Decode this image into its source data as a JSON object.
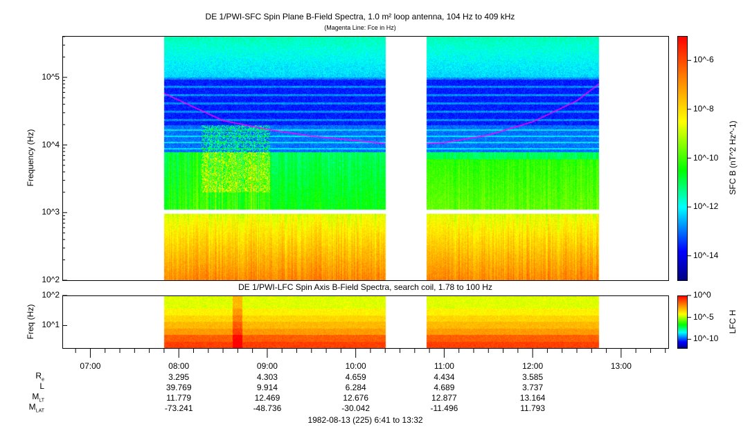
{
  "chart_data": [
    {
      "type": "heatmap",
      "title": "DE 1/PWI-SFC  Spin Plane B-Field Spectra, 1.0 m² loop antenna, 104 Hz to 409 kHz",
      "subtitle": "(Magenta Line: Fce in Hz)",
      "ylabel": "Frequency (Hz)",
      "yscale": "log",
      "ylim": [
        100,
        409000
      ],
      "ytick_labels": [
        "10^2",
        "10^3",
        "10^4",
        "10^5"
      ],
      "xlim": [
        "06:41",
        "13:32"
      ],
      "data_intervals": [
        [
          "07:50",
          "10:20"
        ],
        [
          "10:48",
          "12:45"
        ]
      ],
      "colorbar": {
        "label": "SFC B (nT^2 Hz^-1)",
        "scale": "log",
        "range": [
          1e-15,
          1e-05
        ],
        "tick_labels": [
          "10^-6",
          "10^-8",
          "10^-10",
          "10^-12",
          "10^-14"
        ]
      },
      "fce_line": {
        "color": "#ff00ff",
        "times": [
          "07:50",
          "08:30",
          "09:00",
          "09:30",
          "10:20",
          "10:48",
          "11:00",
          "11:30",
          "12:00",
          "12:30",
          "12:45"
        ],
        "values": [
          58000,
          23000,
          17000,
          13500,
          10500,
          10500,
          10800,
          14000,
          22000,
          45000,
          80000
        ]
      }
    },
    {
      "type": "heatmap",
      "title": "DE 1/PWI-LFC  Spin Axis B-Field Spectra, search coil, 1.78 to 100 Hz",
      "ylabel": "Freq (Hz)",
      "yscale": "log",
      "ylim": [
        1.78,
        100
      ],
      "ytick_labels": [
        "10^1",
        "10^2"
      ],
      "colorbar": {
        "label": "LFC H",
        "scale": "log",
        "range": [
          1e-12,
          1
        ],
        "tick_labels": [
          "10^0",
          "10^-5",
          "10^-10"
        ]
      }
    }
  ],
  "xaxis": {
    "tick_labels": [
      "07:00",
      "08:00",
      "09:00",
      "10:00",
      "11:00",
      "12:00",
      "13:00"
    ]
  },
  "ephemeris": {
    "rows": [
      {
        "label": "R",
        "sub": "e",
        "values": [
          "3.295",
          "4.303",
          "4.659",
          "4.434",
          "3.585"
        ]
      },
      {
        "label": "L",
        "sub": "",
        "values": [
          "39.769",
          "9.914",
          "6.284",
          "4.689",
          "3.737"
        ]
      },
      {
        "label": "M",
        "sub": "LT",
        "values": [
          "11.779",
          "12.469",
          "12.676",
          "12.877",
          "13.164"
        ]
      },
      {
        "label": "M",
        "sub": "LAT",
        "values": [
          "-73.241",
          "-48.736",
          "-30.042",
          "-11.496",
          "11.793"
        ]
      }
    ]
  },
  "footer": "1982-08-13 (225) 6:41 to 13:32"
}
